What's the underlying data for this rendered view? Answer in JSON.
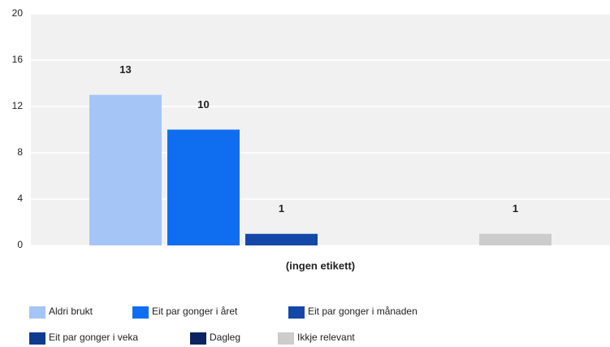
{
  "chart_data": {
    "type": "bar",
    "categories": [
      "(ingen etikett)"
    ],
    "series": [
      {
        "name": "Aldri brukt",
        "color": "#a6c5f7",
        "values": [
          13
        ]
      },
      {
        "name": "Eit par gonger i året",
        "color": "#0f6ef0",
        "values": [
          10
        ]
      },
      {
        "name": "Eit par gonger i månaden",
        "color": "#1448a8",
        "values": [
          1
        ]
      },
      {
        "name": "Eit par gonger i veka",
        "color": "#0d3b8e",
        "values": [
          0
        ]
      },
      {
        "name": "Dagleg",
        "color": "#0b2460",
        "values": [
          0
        ]
      },
      {
        "name": "Ikkje relevant",
        "color": "#cccccc",
        "values": [
          1
        ]
      }
    ],
    "ylim": [
      0,
      20
    ],
    "yticks": [
      0,
      4,
      8,
      12,
      16,
      20
    ],
    "grid": true,
    "legend": "bottom"
  }
}
